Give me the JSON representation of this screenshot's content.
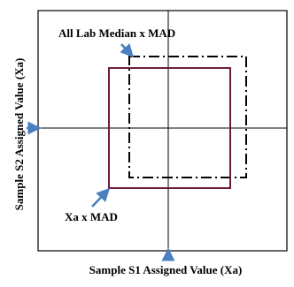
{
  "diagram": {
    "labels": {
      "all_lab_box": "All Lab Median x MAD",
      "xa_box": "Xa x MAD",
      "x_axis": "Sample S1 Assigned Value (Xa)",
      "y_axis": "Sample S2 Assigned Value (Xa)"
    },
    "colors": {
      "frame": "#000000",
      "axis_lines": "#000000",
      "xa_box": "#6b1c3c",
      "all_lab_box": "#000000",
      "arrows": "#4a7fc0"
    }
  }
}
